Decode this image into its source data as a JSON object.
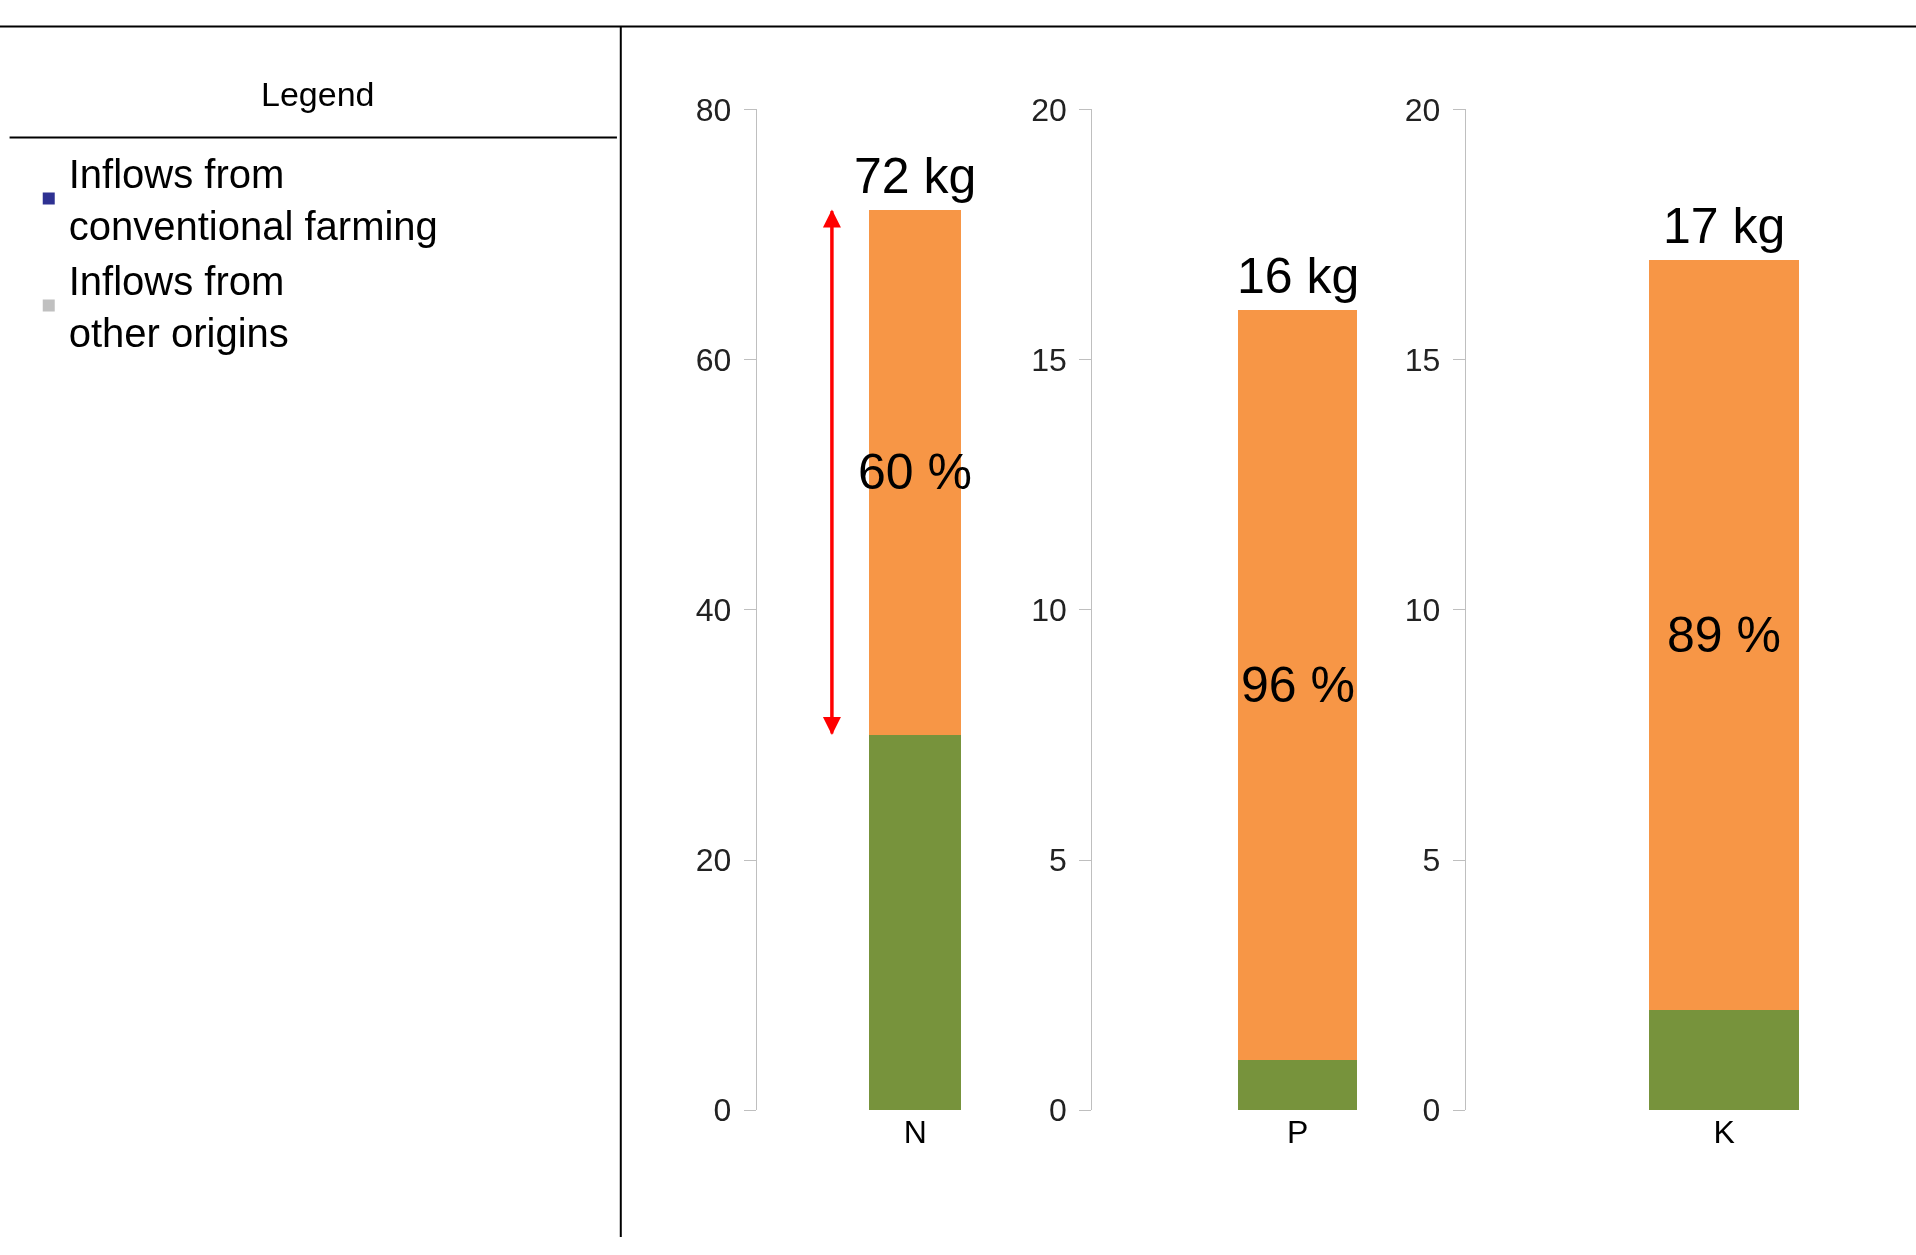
{
  "chart_data": [
    {
      "type": "other",
      "title": "Legend",
      "legend": "left",
      "series": [
        {
          "name": "Inflows from conventional farming",
          "color": "#2e3192"
        },
        {
          "name": "Inflows from other origins",
          "color": "#c0c0c0"
        }
      ]
    },
    {
      "type": "bar",
      "stacked": true,
      "categories": [
        "N"
      ],
      "series": [
        {
          "color": "#77933c",
          "values": [
            30
          ]
        },
        {
          "color": "#f79646",
          "values": [
            42
          ]
        }
      ],
      "ylim": [
        0,
        80
      ],
      "yticks": [
        0,
        20,
        40,
        60,
        80
      ],
      "totals": [
        "72 kg"
      ],
      "annotations": [
        "60 %"
      ]
    },
    {
      "type": "bar",
      "stacked": true,
      "categories": [
        "P"
      ],
      "series": [
        {
          "color": "#77933c",
          "values": [
            1
          ]
        },
        {
          "color": "#f79646",
          "values": [
            15
          ]
        }
      ],
      "ylim": [
        0,
        20
      ],
      "yticks": [
        0,
        5,
        10,
        15,
        20
      ],
      "totals": [
        "16 kg"
      ],
      "annotations": [
        "96 %"
      ]
    },
    {
      "type": "bar",
      "stacked": true,
      "categories": [
        "K"
      ],
      "series": [
        {
          "color": "#77933c",
          "values": [
            2
          ]
        },
        {
          "color": "#f79646",
          "values": [
            15
          ]
        }
      ],
      "ylim": [
        0,
        20
      ],
      "yticks": [
        0,
        5,
        10,
        15,
        20
      ],
      "totals": [
        "17 kg"
      ],
      "annotations": [
        "89 %"
      ]
    }
  ]
}
